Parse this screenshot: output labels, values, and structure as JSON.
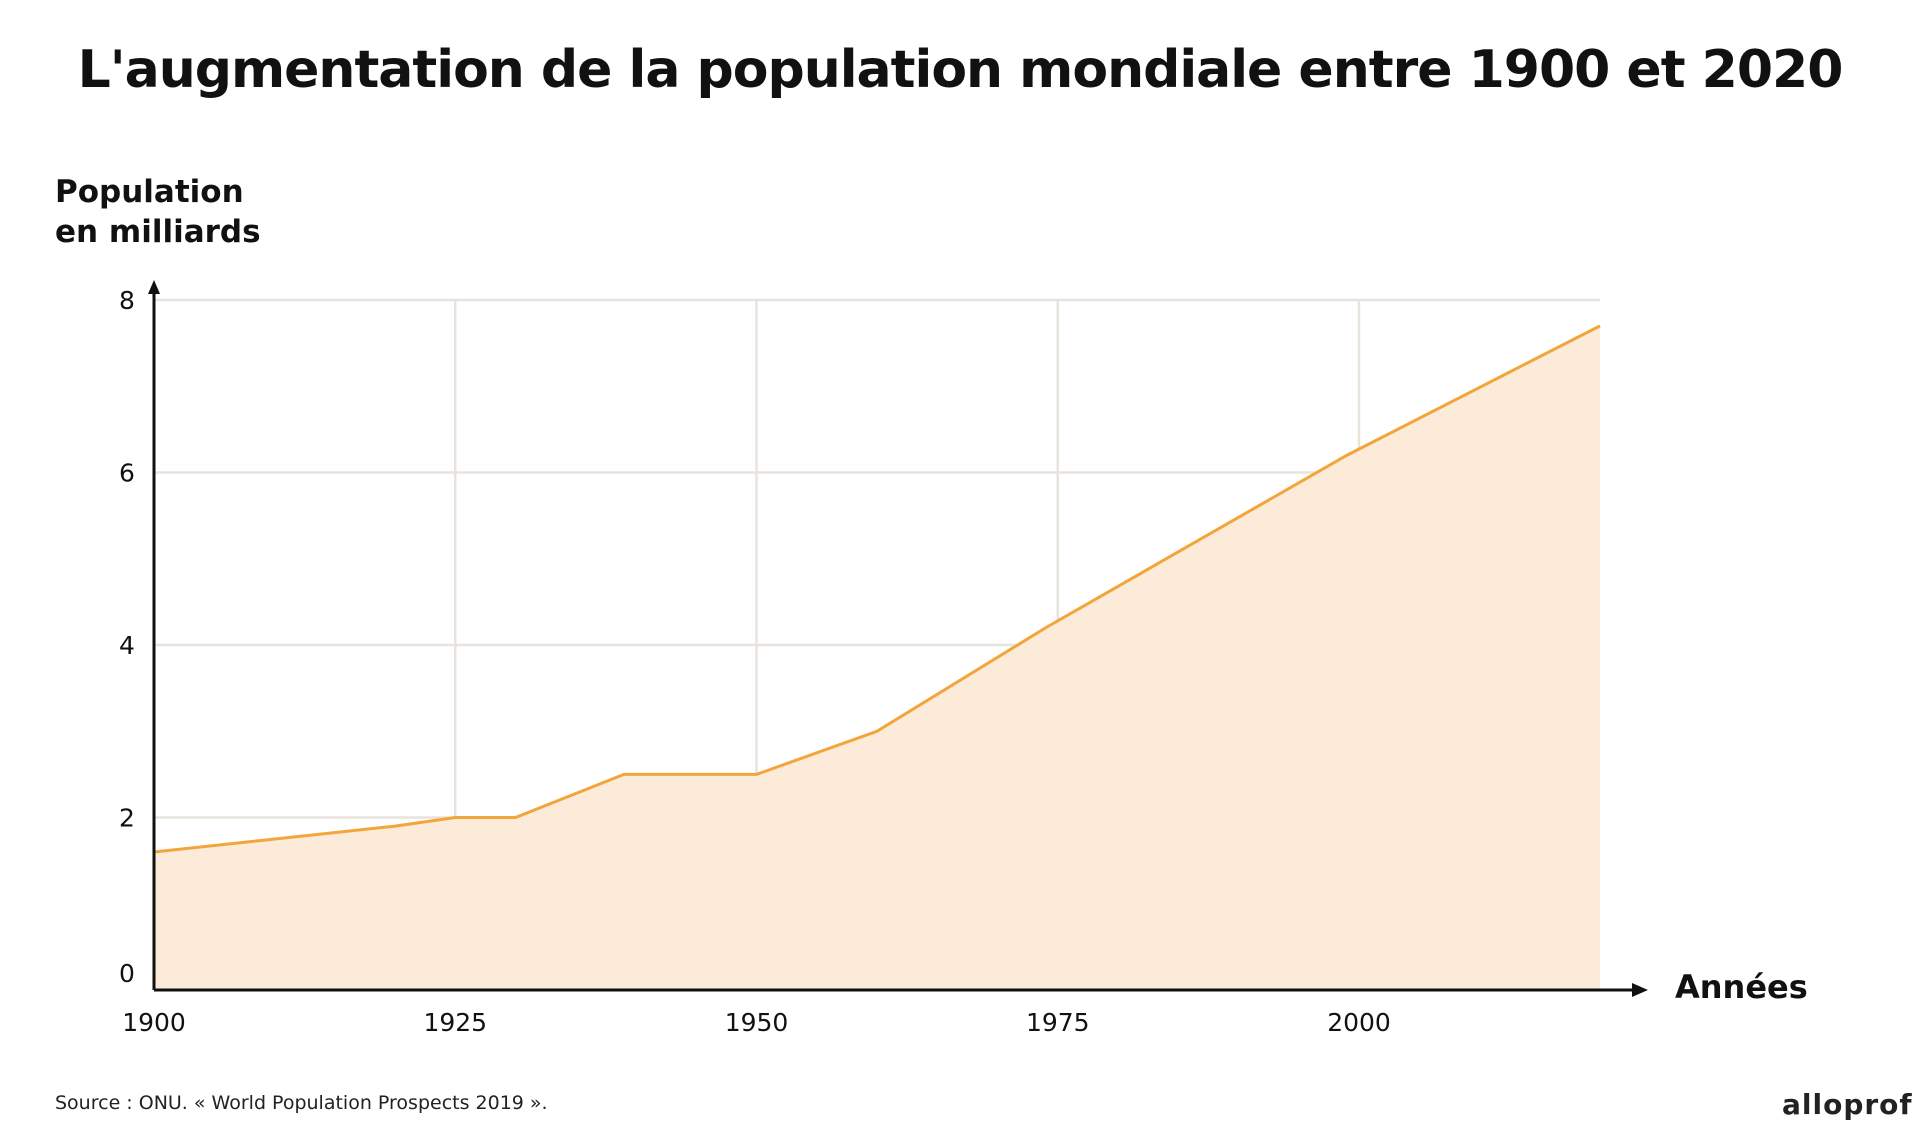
{
  "chart_data": {
    "type": "area",
    "title": "L'augmentation de la population mondiale entre 1900 et 2020",
    "ylabel": "Population\nen milliards",
    "xlabel": "Années",
    "x": [
      1900,
      1920,
      1925,
      1930,
      1939,
      1950,
      1960,
      1974,
      1999,
      2020
    ],
    "values": [
      1.6,
      1.9,
      2.0,
      2.0,
      2.5,
      2.5,
      3.0,
      4.2,
      6.2,
      7.7
    ],
    "xlim": [
      1900,
      2020
    ],
    "ylim": [
      0,
      8
    ],
    "xticks": [
      "1900",
      "1925",
      "1950",
      "1975",
      "2000"
    ],
    "yticks": [
      "0",
      "2",
      "4",
      "6",
      "8"
    ],
    "grid": true,
    "line_color": "#f2a53a",
    "fill_color": "#fcebd8",
    "grid_color": "#e8e4dd",
    "source": "Source : ONU. « World Population Prospects 2019 ».",
    "brand": "alloprof"
  }
}
